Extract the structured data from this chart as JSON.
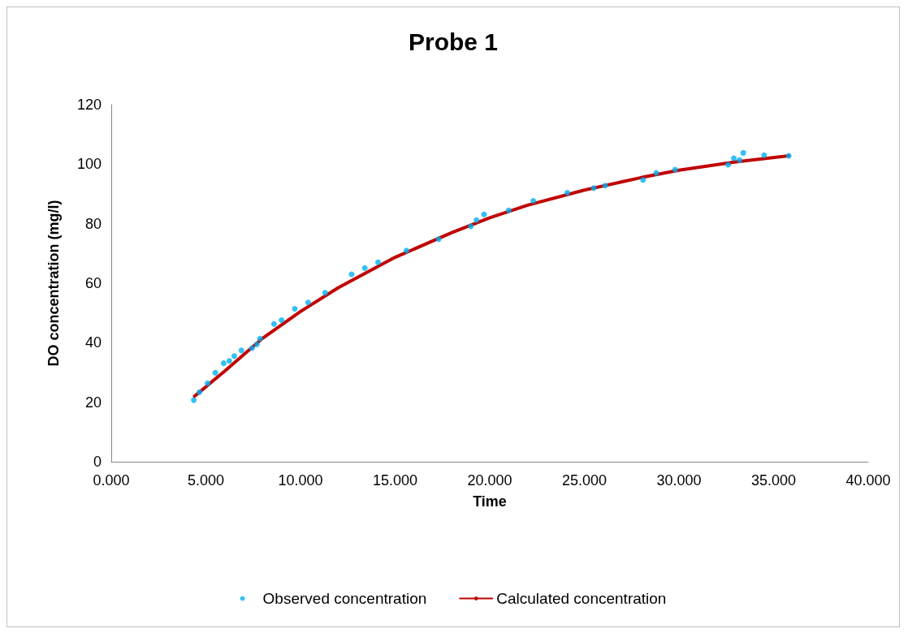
{
  "chart_data": {
    "type": "scatter",
    "title": "Probe 1",
    "xlabel": "Time",
    "ylabel": "DO concentration (mg/l)",
    "xlim": [
      0,
      40
    ],
    "xticks": [
      {
        "value": 0,
        "label": "0.000"
      },
      {
        "value": 5,
        "label": "5.000"
      },
      {
        "value": 10,
        "label": "10.000"
      },
      {
        "value": 15,
        "label": "15.000"
      },
      {
        "value": 20,
        "label": "20.000"
      },
      {
        "value": 25,
        "label": "25.000"
      },
      {
        "value": 30,
        "label": "30.000"
      },
      {
        "value": 35,
        "label": "35.000"
      },
      {
        "value": 40,
        "label": "40.000"
      }
    ],
    "ylim": [
      0,
      120
    ],
    "yticks": [
      0,
      20,
      40,
      60,
      80,
      100,
      120
    ],
    "grid": false,
    "legend": "bottom",
    "series": [
      {
        "name": "Observed concentration",
        "marker": "circle",
        "color": "#00b0f0",
        "x": [
          4.36,
          4.66,
          5.09,
          5.5,
          5.94,
          6.24,
          6.5,
          6.88,
          7.44,
          7.7,
          7.86,
          8.6,
          9.0,
          9.7,
          10.4,
          11.3,
          12.7,
          13.4,
          14.1,
          15.6,
          17.3,
          19.0,
          19.3,
          19.7,
          21.0,
          22.3,
          24.1,
          25.5,
          26.1,
          28.1,
          28.8,
          29.8,
          32.6,
          32.9,
          33.2,
          33.4,
          34.5,
          35.8
        ],
        "values": [
          20.7,
          23.4,
          26.4,
          29.9,
          33.1,
          33.9,
          35.5,
          37.4,
          38.2,
          39.5,
          41.4,
          46.3,
          47.6,
          51.4,
          53.5,
          56.8,
          63,
          65.1,
          67,
          71,
          74.8,
          79.1,
          81.2,
          83.1,
          84.5,
          87.7,
          90.4,
          92,
          92.8,
          94.7,
          97.1,
          98.2,
          99.8,
          102,
          101.4,
          103.8,
          103,
          102.8
        ]
      },
      {
        "name": "Calculated concentration",
        "type": "line",
        "marker": "none",
        "color": "#c00000",
        "x": [
          4.4,
          6,
          8,
          10,
          12,
          15,
          18,
          20,
          22,
          25,
          28,
          30,
          33,
          35.8
        ],
        "values": [
          22,
          30.5,
          41.5,
          50.5,
          58.5,
          68.7,
          77,
          82,
          86.2,
          91.3,
          95.5,
          98,
          100.8,
          102.8
        ]
      }
    ]
  }
}
